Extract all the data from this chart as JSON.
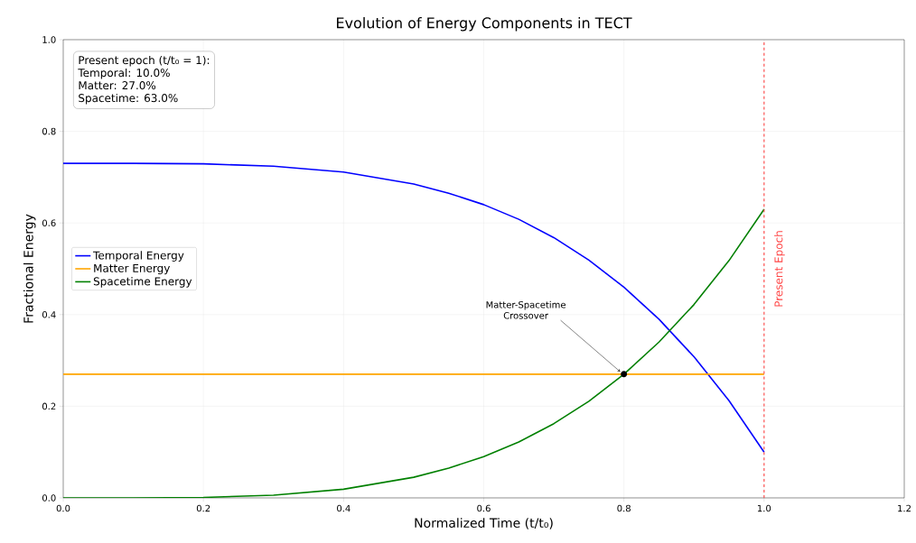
{
  "chart_data": {
    "type": "line",
    "title": "Evolution of Energy Components in TECT",
    "xlabel": "Normalized Time (t/t₀)",
    "ylabel": "Fractional Energy",
    "x": [
      0,
      0.1,
      0.2,
      0.3,
      0.4,
      0.5,
      0.55,
      0.6,
      0.65,
      0.7,
      0.75,
      0.8,
      0.85,
      0.9,
      0.95,
      1.0
    ],
    "series": [
      {
        "name": "Temporal Energy",
        "color": "#0000ff",
        "values": [
          0.73,
          0.73,
          0.729,
          0.724,
          0.711,
          0.685,
          0.665,
          0.64,
          0.608,
          0.568,
          0.519,
          0.46,
          0.39,
          0.308,
          0.212,
          0.1
        ]
      },
      {
        "name": "Matter Energy",
        "color": "#ffa500",
        "values": [
          0.27,
          0.27,
          0.27,
          0.27,
          0.27,
          0.27,
          0.27,
          0.27,
          0.27,
          0.27,
          0.27,
          0.27,
          0.27,
          0.27,
          0.27,
          0.27
        ]
      },
      {
        "name": "Spacetime Energy",
        "color": "#008000",
        "values": [
          0,
          0,
          0.001,
          0.006,
          0.019,
          0.045,
          0.065,
          0.09,
          0.122,
          0.162,
          0.211,
          0.27,
          0.34,
          0.422,
          0.518,
          0.63
        ]
      }
    ],
    "xlim": [
      0,
      1.2
    ],
    "ylim": [
      0,
      1.0
    ],
    "xticks": [
      {
        "value": 0,
        "label": "0.0"
      },
      {
        "value": 0.2,
        "label": "0.2"
      },
      {
        "value": 0.4,
        "label": "0.4"
      },
      {
        "value": 0.6,
        "label": "0.6"
      },
      {
        "value": 0.8,
        "label": "0.8"
      },
      {
        "value": 1.0,
        "label": "1.0"
      },
      {
        "value": 1.2,
        "label": "1.2"
      }
    ],
    "yticks": [
      {
        "value": 0,
        "label": "0.0"
      },
      {
        "value": 0.2,
        "label": "0.2"
      },
      {
        "value": 0.4,
        "label": "0.4"
      },
      {
        "value": 0.6,
        "label": "0.6"
      },
      {
        "value": 0.8,
        "label": "0.8"
      },
      {
        "value": 1.0,
        "label": "1.0"
      }
    ],
    "ref_lines": [
      {
        "axis": "x",
        "value": 1.0,
        "label": "Present Epoch",
        "color": "#ff4444",
        "line_style": "dashed"
      }
    ],
    "annotations": [
      "Present epoch (t/t₀ = 1):",
      "Temporal: 10.0%",
      "Matter: 27.0%",
      "Spacetime: 63.0%",
      {
        "text": "Matter-Spacetime Crossover",
        "x": 0.8,
        "y": 0.27
      }
    ],
    "grid": true,
    "legend": "center left",
    "marker": "none",
    "line_style": "solid"
  }
}
